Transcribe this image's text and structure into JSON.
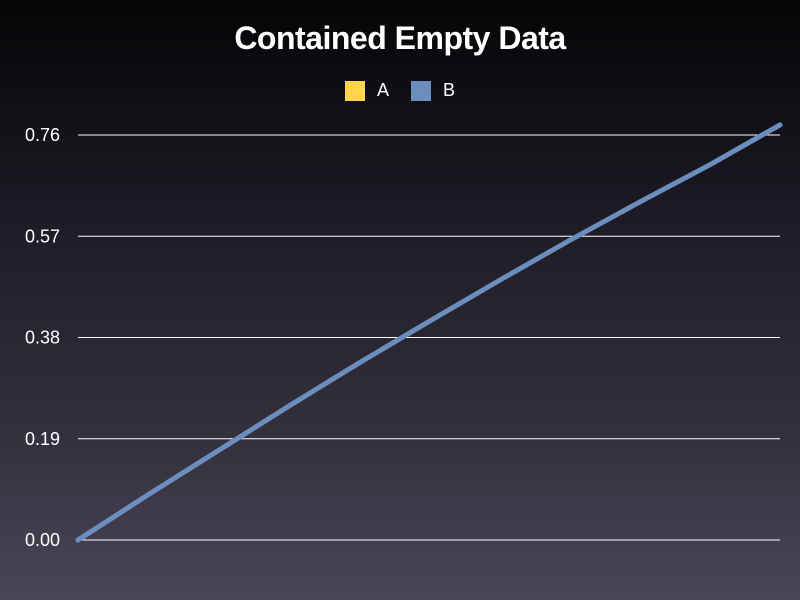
{
  "chart_data": {
    "type": "line",
    "title": "Contained Empty Data",
    "xlabel": "",
    "ylabel": "",
    "ylim": [
      0,
      0.76
    ],
    "yticks": [
      "0.00",
      "0.19",
      "0.38",
      "0.57",
      "0.76"
    ],
    "grid": true,
    "legend_position": "top-center",
    "series": [
      {
        "name": "A",
        "color": "#ffd54f",
        "x": [],
        "values": []
      },
      {
        "name": "B",
        "color": "#6c8ebf",
        "x": [
          0,
          1,
          2,
          3,
          4,
          5,
          6,
          7,
          8,
          9,
          10
        ],
        "values": [
          0.0,
          0.085,
          0.168,
          0.251,
          0.332,
          0.41,
          0.487,
          0.562,
          0.634,
          0.704,
          0.779
        ]
      }
    ]
  }
}
